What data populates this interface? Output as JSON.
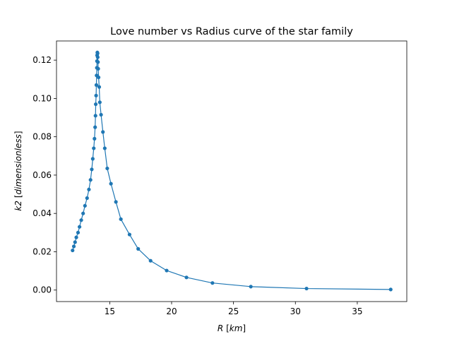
{
  "chart_data": {
    "type": "line",
    "title": "Love number vs Radius curve of the star family",
    "xlabel": {
      "symbol": "R",
      "unit": "km"
    },
    "ylabel": {
      "symbol": "k2",
      "unit": "dimensionless"
    },
    "xlim": [
      10.7,
      39.0
    ],
    "ylim": [
      -0.006,
      0.13
    ],
    "xticks": [
      15,
      20,
      25,
      30,
      35
    ],
    "xtick_labels": [
      "15",
      "20",
      "25",
      "30",
      "35"
    ],
    "yticks": [
      0.0,
      0.02,
      0.04,
      0.06,
      0.08,
      0.1,
      0.12
    ],
    "ytick_labels": [
      "0.00",
      "0.02",
      "0.04",
      "0.06",
      "0.08",
      "0.10",
      "0.12"
    ],
    "grid": false,
    "legend": "none",
    "color": "#1f77b4",
    "series": [
      {
        "x": [
          37.7,
          30.9,
          26.4,
          23.3,
          21.2,
          19.6,
          18.3,
          17.3,
          16.6,
          15.9,
          15.5,
          15.1,
          14.8,
          14.6,
          14.45,
          14.3,
          14.2,
          14.15,
          14.1,
          14.07,
          14.05,
          14.03,
          14.02,
          14.0,
          13.98,
          13.97,
          13.96,
          13.94,
          13.92,
          13.9,
          13.87,
          13.85,
          13.82,
          13.77,
          13.71,
          13.63,
          13.55,
          13.45,
          13.32,
          13.17,
          13.0,
          12.85,
          12.7,
          12.56,
          12.44,
          12.3,
          12.2,
          12.1,
          12.0
        ],
        "y": [
          0.0003,
          0.0008,
          0.0018,
          0.0037,
          0.0066,
          0.0102,
          0.0153,
          0.0215,
          0.029,
          0.037,
          0.046,
          0.0555,
          0.0635,
          0.074,
          0.0825,
          0.0915,
          0.098,
          0.106,
          0.111,
          0.1155,
          0.119,
          0.1215,
          0.1235,
          0.124,
          0.1225,
          0.1195,
          0.116,
          0.112,
          0.107,
          0.1015,
          0.097,
          0.091,
          0.085,
          0.079,
          0.074,
          0.0685,
          0.063,
          0.0575,
          0.0525,
          0.048,
          0.044,
          0.04,
          0.0365,
          0.033,
          0.03,
          0.0275,
          0.025,
          0.0228,
          0.0207
        ]
      }
    ]
  }
}
